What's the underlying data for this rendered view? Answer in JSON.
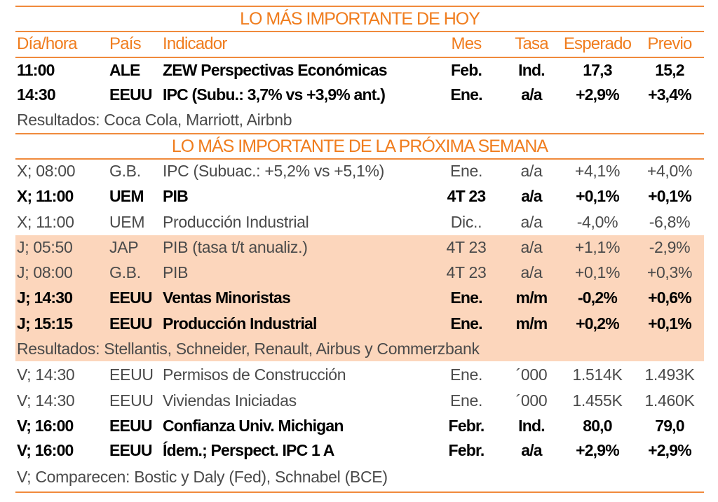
{
  "today_title": "LO MÁS IMPORTANTE DE HOY",
  "next_week_title": "LO MÁS IMPORTANTE DE LA PRÓXIMA SEMANA",
  "colors": {
    "accent": "#f07d1e",
    "highlight": "#fcd6bc"
  },
  "headers": [
    "Día/hora",
    "País",
    "Indicador",
    "Mes",
    "Tasa",
    "Esperado",
    "Previo"
  ],
  "today_rows": [
    {
      "cells": [
        "11:00",
        "ALE",
        "ZEW Perspectivas Económicas",
        "Feb.",
        "Ind.",
        "17,3",
        "15,2"
      ],
      "style": "bold"
    },
    {
      "cells": [
        "14:30",
        "EEUU",
        "IPC (Subu.: 3,7% vs +3,9% ant.)",
        "Ene.",
        "a/a",
        "+2,9%",
        "+3,4%"
      ],
      "style": "bold"
    }
  ],
  "today_note": "Resultados: Coca Cola, Marriott, Airbnb",
  "week_rows": [
    {
      "cells": [
        "X; 08:00",
        "G.B.",
        "IPC (Subuac.: +5,2% vs +5,1%)",
        "Ene.",
        "a/a",
        "+4,1%",
        "+4,0%"
      ],
      "style": "light"
    },
    {
      "cells": [
        "X; 11:00",
        "UEM",
        "PIB",
        "4T 23",
        "a/a",
        "+0,1%",
        "+0,1%"
      ],
      "style": "bold"
    },
    {
      "cells": [
        "X; 11:00",
        "UEM",
        "Producción Industrial",
        "Dic..",
        "a/a",
        "-4,0%",
        "-6,8%"
      ],
      "style": "light"
    },
    {
      "cells": [
        "J; 05:50",
        "JAP",
        "PIB (tasa t/t anualiz.)",
        "4T 23",
        "a/a",
        "+1,1%",
        "-2,9%"
      ],
      "style": "light"
    },
    {
      "cells": [
        "J; 08:00",
        "G.B.",
        "PIB",
        "4T 23",
        "a/a",
        "+0,1%",
        "+0,3%"
      ],
      "style": "light"
    },
    {
      "cells": [
        "J; 14:30",
        "EEUU",
        "Ventas Minoristas",
        "Ene.",
        "m/m",
        "-0,2%",
        "+0,6%"
      ],
      "style": "bold"
    },
    {
      "cells": [
        "J; 15:15",
        "EEUU",
        "Producción Industrial",
        "Ene.",
        "m/m",
        "+0,2%",
        "+0,1%"
      ],
      "style": "bold"
    },
    {
      "note": "Resultados: Stellantis, Schneider, Renault, Airbus y Commerzbank"
    },
    {
      "cells": [
        "V; 14:30",
        "EEUU",
        "Permisos de Construcción",
        "Ene.",
        "´000",
        "1.514K",
        "1.493K"
      ],
      "style": "light"
    },
    {
      "cells": [
        "V; 14:30",
        "EEUU",
        "Viviendas Iniciadas",
        "Ene.",
        "´000",
        "1.455K",
        "1.460K"
      ],
      "style": "light"
    },
    {
      "cells": [
        "V; 16:00",
        "EEUU",
        "Confianza Univ. Michigan",
        "Febr.",
        "Ind.",
        "80,0",
        "79,0"
      ],
      "style": "bold"
    },
    {
      "cells": [
        "V; 16:00",
        "EEUU",
        "Ídem.; Perspect. IPC 1 A",
        "Febr.",
        "a/a",
        "+2,9%",
        "+2,9%"
      ],
      "style": "bold"
    },
    {
      "note": "V; Comparecen: Bostic y Daly (Fed), Schnabel (BCE)"
    }
  ]
}
